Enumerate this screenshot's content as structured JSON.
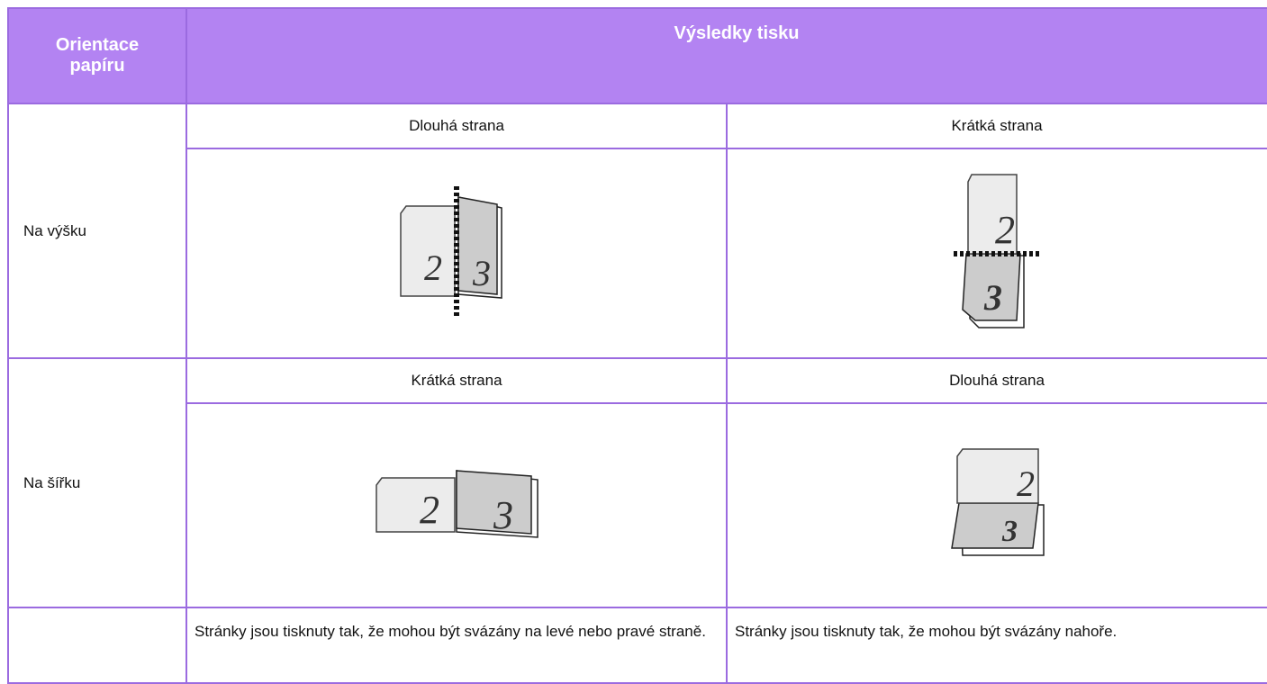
{
  "table": {
    "header": [
      "Orientace papíru",
      "Výsledky tisku"
    ],
    "rows": [
      {
        "label": "Na výšku",
        "bindings": [
          "Dlouhá strana",
          "Krátká strana"
        ],
        "page_numbers": [
          [
            "2",
            "3"
          ],
          [
            "2",
            "3"
          ]
        ]
      },
      {
        "label": "Na šířku",
        "bindings": [
          "Krátká strana",
          "Dlouhá strana"
        ],
        "page_numbers": [
          [
            "2",
            "3"
          ],
          [
            "2",
            "3"
          ]
        ]
      }
    ],
    "notes": [
      "Stránky jsou tisknuty tak, že mohou být svázány na levé nebo pravé straně.",
      "Stránky jsou tisknuty tak, že mohou být svázány nahoře."
    ]
  }
}
